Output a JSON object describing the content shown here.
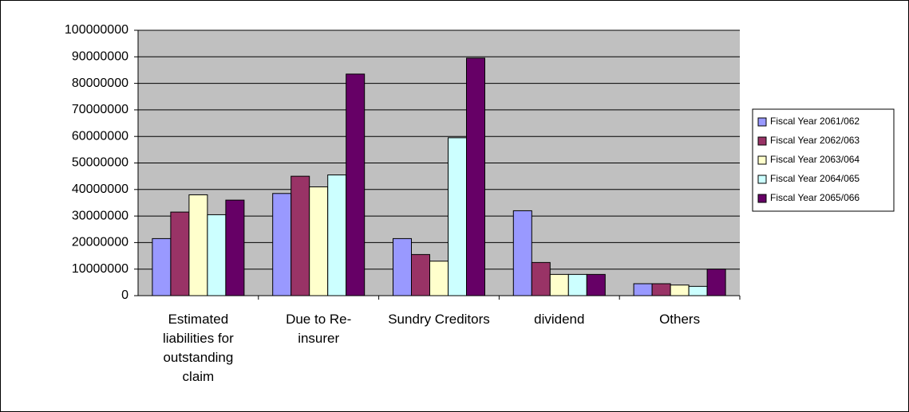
{
  "chart_data": {
    "type": "bar",
    "categories": [
      "Estimated liabilities for outstanding claim",
      "Due to Re-insurer",
      "Sundry Creditors",
      "dividend",
      "Others"
    ],
    "series": [
      {
        "name": "Fiscal Year 2061/062",
        "color": "#9999ff",
        "values": [
          21500000,
          38500000,
          21500000,
          32000000,
          4500000
        ]
      },
      {
        "name": "Fiscal Year 2062/063",
        "color": "#993366",
        "values": [
          31500000,
          45000000,
          15500000,
          12500000,
          4500000
        ]
      },
      {
        "name": "Fiscal Year 2063/064",
        "color": "#ffffcc",
        "values": [
          38000000,
          41000000,
          13000000,
          8000000,
          4000000
        ]
      },
      {
        "name": "Fiscal Year 2064/065",
        "color": "#ccffff",
        "values": [
          30500000,
          45500000,
          59500000,
          8000000,
          3500000
        ]
      },
      {
        "name": "Fiscal Year 2065/066",
        "color": "#660066",
        "values": [
          36000000,
          83500000,
          89500000,
          8000000,
          10000000
        ]
      }
    ],
    "ylim": [
      0,
      100000000
    ],
    "yticks": [
      0,
      10000000,
      20000000,
      30000000,
      40000000,
      50000000,
      60000000,
      70000000,
      80000000,
      90000000,
      100000000
    ],
    "grid": true,
    "legend": "right"
  }
}
